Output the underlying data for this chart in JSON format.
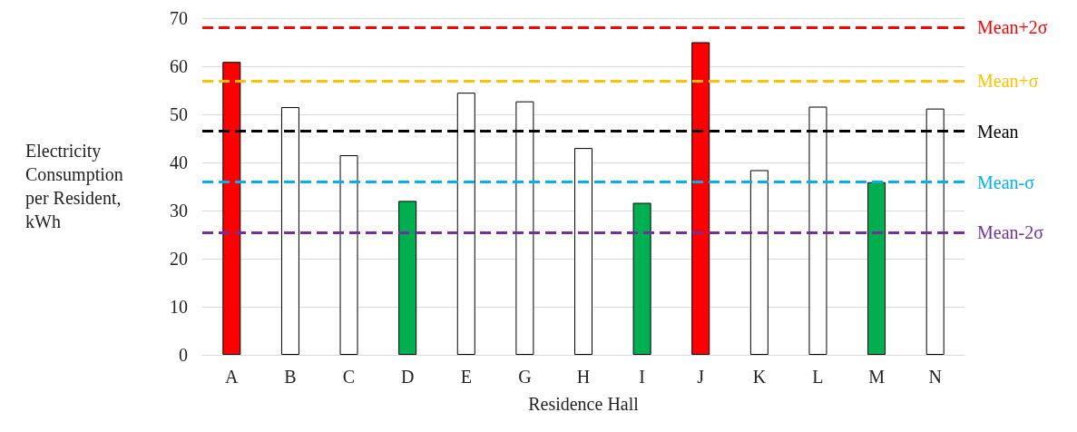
{
  "chart_data": {
    "type": "bar",
    "xlabel": "Residence Hall",
    "ylabel": "Electricity Consumption per Resident, kWh",
    "categories": [
      "A",
      "B",
      "C",
      "D",
      "E",
      "G",
      "H",
      "I",
      "J",
      "K",
      "L",
      "M",
      "N"
    ],
    "values": [
      60.9,
      51.5,
      41.5,
      32.0,
      54.5,
      52.7,
      43.0,
      31.6,
      65.0,
      38.4,
      51.6,
      35.9,
      51.2
    ],
    "colors": [
      "#ff0000",
      "#ffffff",
      "#ffffff",
      "#00b050",
      "#ffffff",
      "#ffffff",
      "#ffffff",
      "#00b050",
      "#ff0000",
      "#ffffff",
      "#ffffff",
      "#00b050",
      "#ffffff"
    ],
    "ylim": [
      0,
      70
    ],
    "yticks": [
      0,
      10,
      20,
      30,
      40,
      50,
      60,
      70
    ],
    "grid": "y",
    "ref_lines": [
      {
        "axis": "y",
        "value": 68.1,
        "label": "Mean+2σ",
        "color": "#ff0000",
        "line_style": "dashed"
      },
      {
        "axis": "y",
        "value": 57.0,
        "label": "Mean+σ",
        "color": "#ffc000",
        "line_style": "dashed"
      },
      {
        "axis": "y",
        "value": 46.5,
        "label": "Mean",
        "color": "#000000",
        "line_style": "dashed"
      },
      {
        "axis": "y",
        "value": 35.9,
        "label": "Mean-σ",
        "color": "#00b0f0",
        "line_style": "dashed"
      },
      {
        "axis": "y",
        "value": 25.4,
        "label": "Mean-2σ",
        "color": "#7030a0",
        "line_style": "dashed"
      }
    ]
  }
}
